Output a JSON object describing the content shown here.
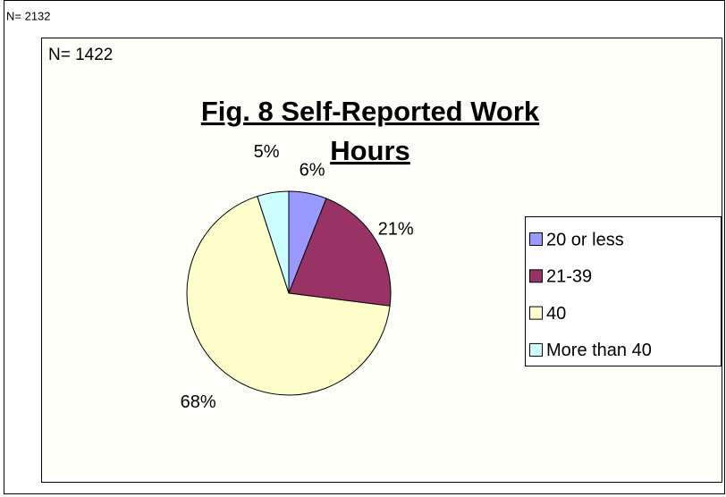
{
  "chart_data": {
    "type": "pie",
    "title": "Fig. 8 Self-Reported Work Hours",
    "annotations": [
      "N= 2132",
      "N= 1422"
    ],
    "categories": [
      "20 or less",
      "21-39",
      "40",
      "More than 40"
    ],
    "values": [
      6,
      21,
      68,
      5
    ],
    "value_labels": [
      "6%",
      "21%",
      "68%",
      "5%"
    ],
    "colors": [
      "#9999ff",
      "#993366",
      "#ffffcc",
      "#ccffff"
    ],
    "legend": "right"
  }
}
